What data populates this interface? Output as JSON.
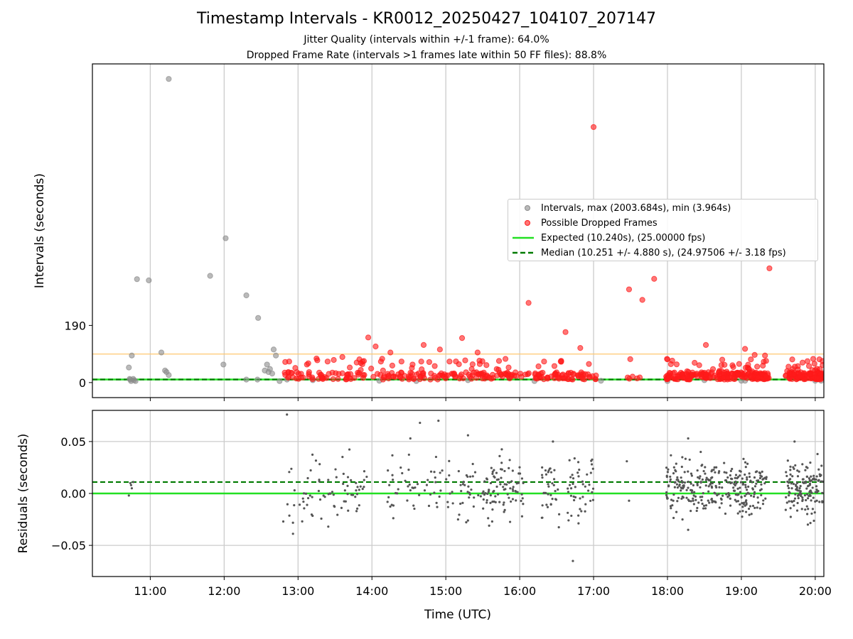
{
  "figure": {
    "title": "Timestamp Intervals - KR0012_20250427_104107_207147",
    "subtitle_1": "Jitter Quality (intervals within +/-1 frame): 64.0%",
    "subtitle_2": "Dropped Frame Rate (intervals >1 frames late within 50 FF files): 88.8%"
  },
  "colors": {
    "intervals": "#8c8c8c",
    "dropped": "#ff1a1a",
    "expected": "#22e022",
    "median": "#007a00",
    "threshold": "#ffc870",
    "residuals": "#555555",
    "grid": "#cccccc"
  },
  "chart_data": [
    {
      "type": "scatter",
      "panel": "top",
      "xlabel": "",
      "ylabel": "Intervals (seconds)",
      "x_unit": "hours UTC",
      "xlim": [
        "10:13",
        "20:07"
      ],
      "ylim": [
        -50,
        1060
      ],
      "yticks": [
        0,
        190
      ],
      "ytick_labels": [
        "0",
        "190"
      ],
      "grid": "x",
      "legend_position": "center-right",
      "legend": [
        "Intervals, max (2003.684s), min (3.964s)",
        "Possible Dropped Frames",
        "Expected (10.240s), (25.00000 fps)",
        "Median (10.251 +/- 4.880 s), (24.97506 +/- 3.18 fps)"
      ],
      "lines": [
        {
          "name": "Expected (10.240s), (25.00000 fps)",
          "y": 10.24,
          "style": "solid"
        },
        {
          "name": "Median (10.251 +/- 4.880 s), (24.97506 +/- 3.18 fps)",
          "y": 10.251,
          "style": "dashed"
        },
        {
          "y": 95,
          "style": "threshold"
        }
      ],
      "series": [
        {
          "name": "Intervals, max (2003.684s), min (3.964s)",
          "points": [
            [
              10.71,
              50
            ],
            [
              10.72,
              12
            ],
            [
              10.73,
              10
            ],
            [
              10.74,
              5
            ],
            [
              10.75,
              90
            ],
            [
              10.77,
              12
            ],
            [
              10.78,
              8
            ],
            [
              10.8,
              5
            ],
            [
              10.82,
              344
            ],
            [
              10.98,
              340
            ],
            [
              11.15,
              100
            ],
            [
              11.2,
              40
            ],
            [
              11.22,
              35
            ],
            [
              11.25,
              25
            ],
            [
              11.25,
              1010
            ],
            [
              11.81,
              355
            ],
            [
              11.99,
              60
            ],
            [
              12.02,
              480
            ],
            [
              12.3,
              10
            ],
            [
              12.3,
              290
            ],
            [
              12.45,
              10
            ],
            [
              12.46,
              215
            ],
            [
              12.55,
              40
            ],
            [
              12.58,
              60
            ],
            [
              12.6,
              35
            ],
            [
              12.62,
              45
            ],
            [
              12.65,
              30
            ],
            [
              12.67,
              110
            ],
            [
              12.7,
              90
            ],
            [
              12.75,
              5
            ],
            [
              12.85,
              10
            ],
            [
              13.2,
              8
            ],
            [
              14.1,
              6
            ],
            [
              14.6,
              5
            ],
            [
              15.3,
              8
            ],
            [
              16.2,
              5
            ],
            [
              17.1,
              6
            ],
            [
              18.0,
              5
            ],
            [
              18.5,
              8
            ],
            [
              19.0,
              6
            ],
            [
              19.05,
              6
            ],
            [
              20.0,
              6
            ],
            [
              20.08,
              6
            ]
          ]
        },
        {
          "name": "Possible Dropped Frames",
          "points": [
            [
              12.88,
              70
            ],
            [
              13.12,
              60
            ],
            [
              13.25,
              80
            ],
            [
              13.4,
              70
            ],
            [
              13.6,
              85
            ],
            [
              13.7,
              50
            ],
            [
              13.85,
              65
            ],
            [
              13.95,
              150
            ],
            [
              14.05,
              120
            ],
            [
              14.15,
              40
            ],
            [
              14.25,
              100
            ],
            [
              14.4,
              70
            ],
            [
              14.55,
              60
            ],
            [
              14.7,
              125
            ],
            [
              14.85,
              55
            ],
            [
              14.92,
              110
            ],
            [
              15.05,
              70
            ],
            [
              15.22,
              148
            ],
            [
              15.35,
              45
            ],
            [
              15.43,
              100
            ],
            [
              15.55,
              58
            ],
            [
              15.72,
              72
            ],
            [
              15.85,
              50
            ],
            [
              16.12,
              265
            ],
            [
              16.33,
              70
            ],
            [
              16.47,
              55
            ],
            [
              16.62,
              168
            ],
            [
              16.82,
              115
            ],
            [
              17.0,
              850
            ],
            [
              17.48,
              310
            ],
            [
              17.66,
              275
            ],
            [
              17.82,
              345
            ],
            [
              18.52,
              125
            ],
            [
              19.05,
              112
            ],
            [
              19.18,
              92
            ],
            [
              19.32,
              90
            ],
            [
              19.38,
              380
            ],
            [
              19.68,
              35
            ],
            [
              19.85,
              25
            ]
          ]
        }
      ]
    },
    {
      "type": "scatter",
      "panel": "bottom",
      "xlabel": "Time (UTC)",
      "ylabel": "Residuals (seconds)",
      "x_unit": "hours UTC",
      "xlim": [
        "10:13",
        "20:07"
      ],
      "ylim": [
        -0.08,
        0.08
      ],
      "yticks": [
        -0.05,
        0.0,
        0.05
      ],
      "ytick_labels": [
        "−0.05",
        "0.00",
        "0.05"
      ],
      "xticks": [
        "11:00",
        "12:00",
        "13:00",
        "14:00",
        "15:00",
        "16:00",
        "17:00",
        "18:00",
        "19:00",
        "20:00"
      ],
      "grid": "both",
      "lines": [
        {
          "name": "Expected",
          "y": 0.0,
          "style": "solid"
        },
        {
          "name": "Median",
          "y": 0.011,
          "style": "dashed"
        }
      ],
      "series": [
        {
          "name": "Residuals",
          "points": [
            [
              10.71,
              -0.002
            ],
            [
              10.73,
              0.01
            ],
            [
              10.74,
              0.008
            ],
            [
              10.75,
              0.005
            ],
            [
              10.77,
              0.011
            ],
            [
              12.85,
              0.076
            ],
            [
              12.8,
              -0.027
            ],
            [
              14.52,
              0.053
            ],
            [
              14.65,
              0.068
            ],
            [
              14.9,
              0.07
            ],
            [
              15.3,
              0.056
            ],
            [
              16.45,
              0.05
            ],
            [
              16.72,
              -0.065
            ],
            [
              17.48,
              -0.007
            ],
            [
              17.45,
              0.031
            ],
            [
              18.28,
              0.053
            ],
            [
              18.28,
              -0.035
            ],
            [
              18.45,
              0.04
            ],
            [
              19.72,
              0.05
            ],
            [
              19.9,
              -0.03
            ]
          ],
          "clusters": [
            [
              12.82,
              13.55,
              45,
              0.0,
              0.016
            ],
            [
              13.55,
              13.95,
              30,
              0.005,
              0.016
            ],
            [
              14.2,
              14.65,
              30,
              0.003,
              0.014
            ],
            [
              14.7,
              15.1,
              25,
              0.003,
              0.014
            ],
            [
              15.15,
              15.55,
              35,
              0.003,
              0.014
            ],
            [
              15.55,
              16.05,
              80,
              0.004,
              0.015
            ],
            [
              16.3,
              16.55,
              35,
              0.004,
              0.015
            ],
            [
              16.65,
              17.0,
              45,
              0.003,
              0.014
            ],
            [
              17.98,
              18.6,
              130,
              0.006,
              0.013
            ],
            [
              18.6,
              19.35,
              160,
              0.004,
              0.012
            ],
            [
              19.6,
              20.1,
              140,
              0.004,
              0.013
            ]
          ]
        }
      ]
    }
  ]
}
